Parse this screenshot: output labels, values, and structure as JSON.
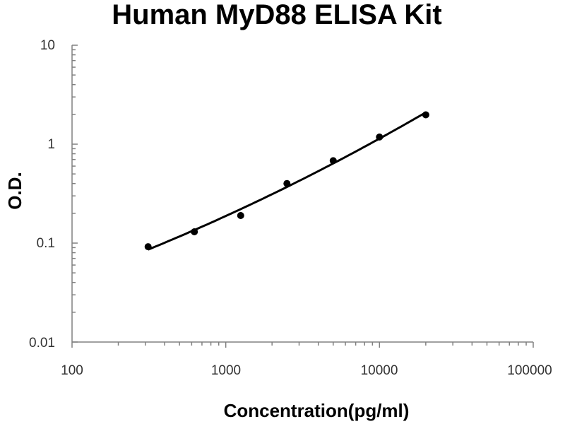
{
  "chart_data": {
    "type": "scatter",
    "title": "Human MyD88 ELISA Kit",
    "xlabel": "Concentration(pg/ml)",
    "ylabel": "O.D.",
    "x_scale": "log",
    "y_scale": "log",
    "xlim": [
      100,
      100000
    ],
    "ylim": [
      0.01,
      10
    ],
    "x_ticks": [
      "100",
      "1000",
      "10000",
      "100000"
    ],
    "y_ticks": [
      "0.01",
      "0.1",
      "1",
      "10"
    ],
    "grid": false,
    "legend": "none",
    "series": [
      {
        "x": [
          312.5,
          625,
          1250,
          2500,
          5000,
          10000,
          20000
        ],
        "y": [
          0.092,
          0.13,
          0.19,
          0.4,
          0.68,
          1.18,
          1.98
        ]
      }
    ],
    "trendline": "smooth fitted curve through points",
    "colors": {
      "series": "#000000",
      "axis": "#808080"
    }
  }
}
